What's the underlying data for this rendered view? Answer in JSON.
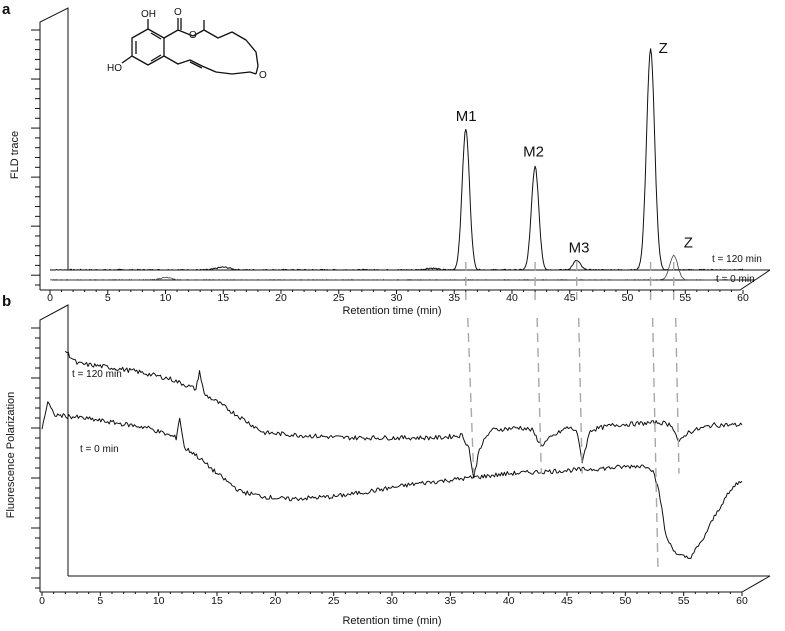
{
  "panels": {
    "a": {
      "letter": "a",
      "ylabel": "FLD trace",
      "xlabel": "Retention time (min)",
      "trace_labels": [
        "t = 120 min",
        "t = 0 min"
      ],
      "structure_labels": [
        "OH",
        "O",
        "O",
        "HO",
        "O"
      ]
    },
    "b": {
      "letter": "b",
      "ylabel": "Fluorescence Polarization",
      "xlabel": "Retention time (min)",
      "trace_labels": [
        "t = 120 min",
        "t = 0 min"
      ]
    }
  },
  "chart_data": [
    {
      "panel": "a",
      "type": "line",
      "xlabel": "Retention time (min)",
      "ylabel": "FLD trace",
      "x_ticks": [
        0,
        5,
        10,
        15,
        20,
        25,
        30,
        35,
        40,
        45,
        50,
        55,
        60
      ],
      "xlim": [
        0,
        60
      ],
      "series": [
        {
          "name": "t = 120 min",
          "peaks": [
            {
              "label": "M1",
              "x": 36.0,
              "height": 0.6
            },
            {
              "label": "M2",
              "x": 42.0,
              "height": 0.44
            },
            {
              "label": "M3",
              "x": 45.6,
              "height": 0.04
            },
            {
              "label": "Z",
              "x": 52.0,
              "height": 0.94
            }
          ]
        },
        {
          "name": "t = 0 min",
          "peaks": [
            {
              "label": "Z",
              "x": 54.0,
              "height": 0.1
            }
          ]
        }
      ]
    },
    {
      "panel": "b",
      "type": "line",
      "xlabel": "Retention time (min)",
      "ylabel": "Fluorescence Polarization",
      "x_ticks": [
        0,
        5,
        10,
        15,
        20,
        25,
        30,
        35,
        40,
        45,
        50,
        55,
        60
      ],
      "xlim": [
        0,
        60
      ],
      "series": [
        {
          "name": "t = 120 min",
          "points": [
            [
              2,
              0.88
            ],
            [
              3,
              0.83
            ],
            [
              5,
              0.82
            ],
            [
              8,
              0.8
            ],
            [
              11,
              0.77
            ],
            [
              13.2,
              0.73
            ],
            [
              13.5,
              0.8
            ],
            [
              13.9,
              0.71
            ],
            [
              15,
              0.68
            ],
            [
              17,
              0.62
            ],
            [
              19,
              0.56
            ],
            [
              22,
              0.55
            ],
            [
              26,
              0.54
            ],
            [
              30,
              0.54
            ],
            [
              34,
              0.54
            ],
            [
              36,
              0.55
            ],
            [
              36.6,
              0.5
            ],
            [
              37,
              0.38
            ],
            [
              37.5,
              0.5
            ],
            [
              38.5,
              0.57
            ],
            [
              41,
              0.58
            ],
            [
              42,
              0.57
            ],
            [
              42.8,
              0.51
            ],
            [
              43.6,
              0.54
            ],
            [
              45,
              0.58
            ],
            [
              45.8,
              0.57
            ],
            [
              46.3,
              0.45
            ],
            [
              47,
              0.57
            ],
            [
              49,
              0.59
            ],
            [
              53,
              0.6
            ],
            [
              54,
              0.59
            ],
            [
              54.6,
              0.52
            ],
            [
              55.3,
              0.56
            ],
            [
              56,
              0.57
            ],
            [
              57.5,
              0.59
            ],
            [
              60,
              0.59
            ]
          ]
        },
        {
          "name": "t = 0 min",
          "points": [
            [
              0,
              0.58
            ],
            [
              0.5,
              0.68
            ],
            [
              1,
              0.63
            ],
            [
              3,
              0.62
            ],
            [
              6,
              0.6
            ],
            [
              9,
              0.58
            ],
            [
              11.5,
              0.54
            ],
            [
              11.8,
              0.62
            ],
            [
              12.2,
              0.5
            ],
            [
              13,
              0.48
            ],
            [
              15,
              0.4
            ],
            [
              17,
              0.33
            ],
            [
              19,
              0.31
            ],
            [
              21,
              0.3
            ],
            [
              25,
              0.31
            ],
            [
              28,
              0.33
            ],
            [
              32,
              0.36
            ],
            [
              36,
              0.38
            ],
            [
              40,
              0.4
            ],
            [
              44,
              0.41
            ],
            [
              48,
              0.42
            ],
            [
              51,
              0.43
            ],
            [
              52,
              0.43
            ],
            [
              52.5,
              0.4
            ],
            [
              53,
              0.3
            ],
            [
              53.5,
              0.15
            ],
            [
              54.5,
              0.08
            ],
            [
              55.5,
              0.07
            ],
            [
              56.5,
              0.13
            ],
            [
              57.5,
              0.22
            ],
            [
              58.5,
              0.3
            ],
            [
              59.5,
              0.36
            ],
            [
              60,
              0.37
            ]
          ]
        }
      ]
    }
  ]
}
